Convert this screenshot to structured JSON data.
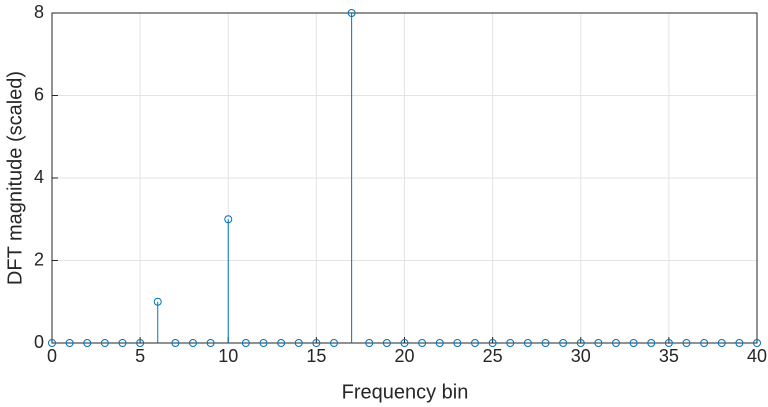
{
  "chart_data": {
    "type": "stem",
    "xlabel": "Frequency bin",
    "ylabel": "DFT magnitude (scaled)",
    "x": [
      0,
      1,
      2,
      3,
      4,
      5,
      6,
      7,
      8,
      9,
      10,
      11,
      12,
      13,
      14,
      15,
      16,
      17,
      18,
      19,
      20,
      21,
      22,
      23,
      24,
      25,
      26,
      27,
      28,
      29,
      30,
      31,
      32,
      33,
      34,
      35,
      36,
      37,
      38,
      39,
      40
    ],
    "values": [
      0,
      0,
      0,
      0,
      0,
      0,
      1,
      0,
      0,
      0,
      3,
      0,
      0,
      0,
      0,
      0,
      0,
      8,
      0,
      0,
      0,
      0,
      0,
      0,
      0,
      0,
      0,
      0,
      0,
      0,
      0,
      0,
      0,
      0,
      0,
      0,
      0,
      0,
      0,
      0,
      0
    ],
    "color": "#0072bd",
    "xlim": [
      0,
      40
    ],
    "xticks": [
      0,
      5,
      10,
      15,
      20,
      25,
      30,
      35,
      40
    ],
    "ylim": [
      0,
      8
    ],
    "yticks": [
      0,
      2,
      4,
      6,
      8
    ],
    "grid": true
  }
}
